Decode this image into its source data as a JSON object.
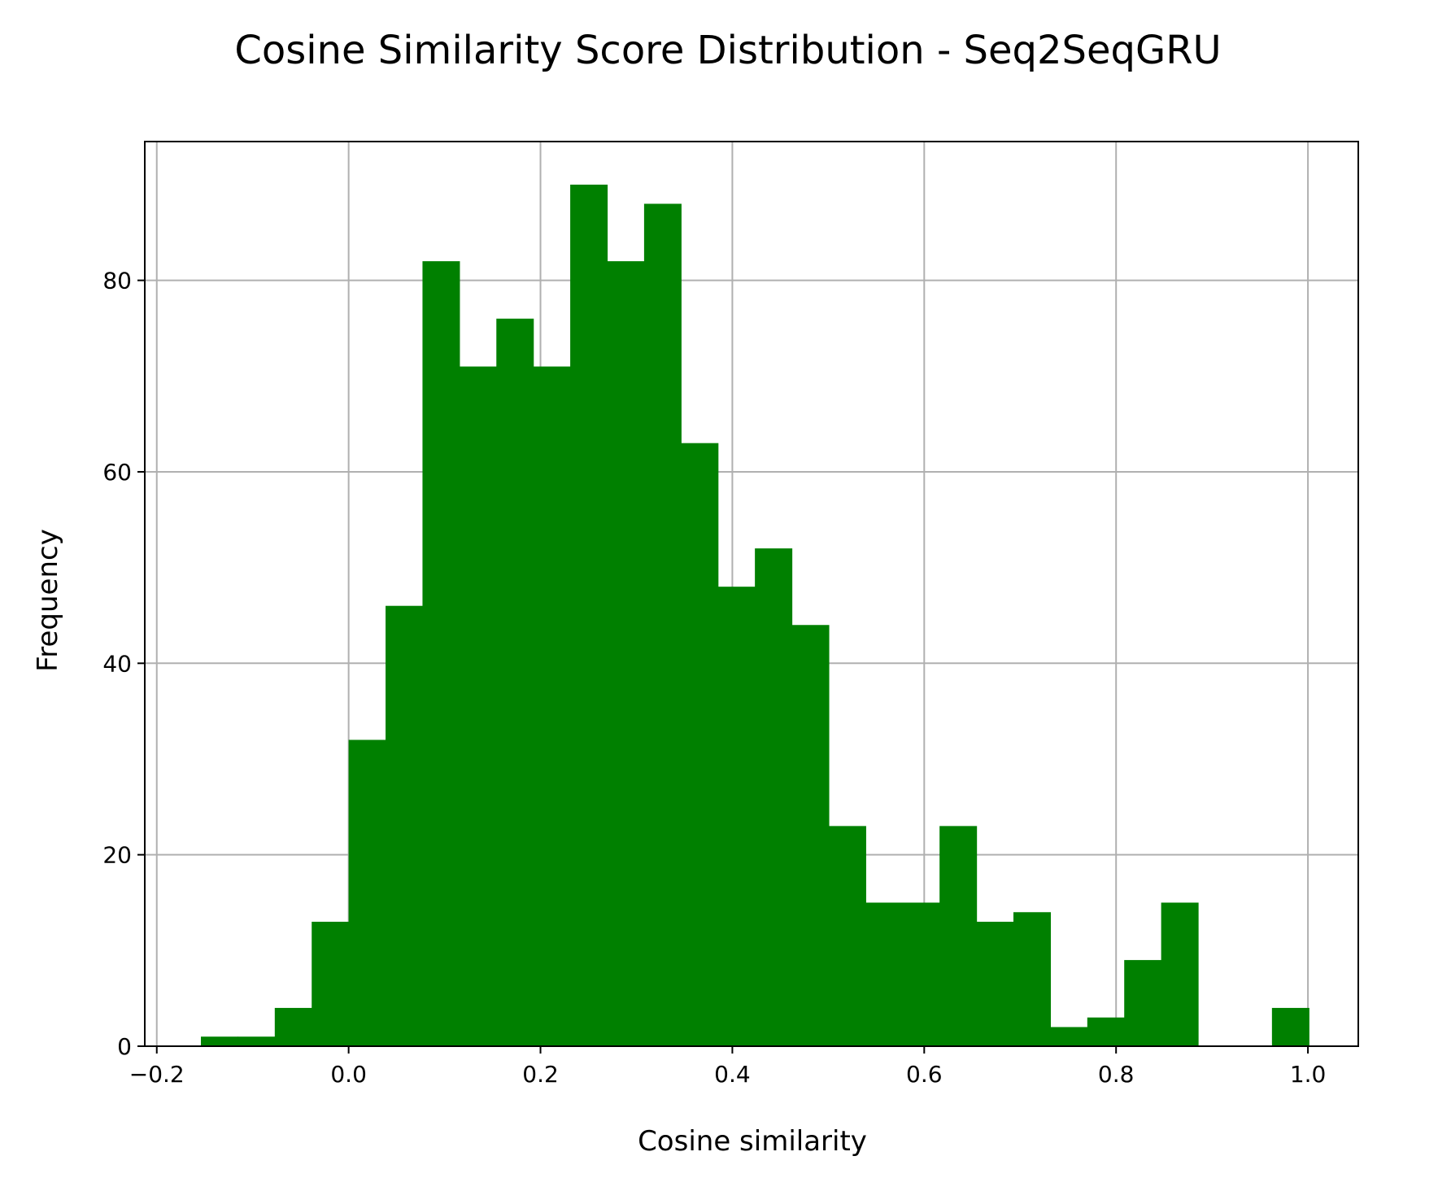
{
  "chart_data": {
    "type": "bar",
    "title": "Cosine Similarity Score Distribution - Seq2SeqGRU",
    "xlabel": "Cosine similarity",
    "ylabel": "Frequency",
    "xlim": [
      -0.2125,
      1.0525
    ],
    "ylim": [
      0,
      94.5
    ],
    "x_ticks": [
      -0.2,
      0.0,
      0.2,
      0.4,
      0.6,
      0.8,
      1.0
    ],
    "x_tick_labels": [
      "−0.2",
      "0.0",
      "0.2",
      "0.4",
      "0.6",
      "0.8",
      "1.0"
    ],
    "y_ticks": [
      0,
      20,
      40,
      60,
      80
    ],
    "y_tick_labels": [
      "0",
      "20",
      "40",
      "60",
      "80"
    ],
    "grid": true,
    "bin_width": 0.0385,
    "bin_edges_start": -0.154,
    "bins": [
      {
        "x0": -0.154,
        "x1": -0.1155,
        "count": 1
      },
      {
        "x0": -0.1155,
        "x1": -0.077,
        "count": 1
      },
      {
        "x0": -0.077,
        "x1": -0.0385,
        "count": 4
      },
      {
        "x0": -0.0385,
        "x1": 0.0,
        "count": 13
      },
      {
        "x0": 0.0,
        "x1": 0.0385,
        "count": 32
      },
      {
        "x0": 0.0385,
        "x1": 0.077,
        "count": 46
      },
      {
        "x0": 0.077,
        "x1": 0.1155,
        "count": 82
      },
      {
        "x0": 0.1155,
        "x1": 0.154,
        "count": 71
      },
      {
        "x0": 0.154,
        "x1": 0.1925,
        "count": 76
      },
      {
        "x0": 0.1925,
        "x1": 0.231,
        "count": 71
      },
      {
        "x0": 0.231,
        "x1": 0.2695,
        "count": 90
      },
      {
        "x0": 0.2695,
        "x1": 0.308,
        "count": 82
      },
      {
        "x0": 0.308,
        "x1": 0.3465,
        "count": 88
      },
      {
        "x0": 0.3465,
        "x1": 0.385,
        "count": 63
      },
      {
        "x0": 0.385,
        "x1": 0.4235,
        "count": 48
      },
      {
        "x0": 0.4235,
        "x1": 0.462,
        "count": 52
      },
      {
        "x0": 0.462,
        "x1": 0.5005,
        "count": 44
      },
      {
        "x0": 0.5005,
        "x1": 0.539,
        "count": 23
      },
      {
        "x0": 0.539,
        "x1": 0.5775,
        "count": 15
      },
      {
        "x0": 0.5775,
        "x1": 0.616,
        "count": 15
      },
      {
        "x0": 0.616,
        "x1": 0.6545,
        "count": 23
      },
      {
        "x0": 0.6545,
        "x1": 0.693,
        "count": 13
      },
      {
        "x0": 0.693,
        "x1": 0.7315,
        "count": 14
      },
      {
        "x0": 0.7315,
        "x1": 0.77,
        "count": 2
      },
      {
        "x0": 0.77,
        "x1": 0.8085,
        "count": 3
      },
      {
        "x0": 0.8085,
        "x1": 0.847,
        "count": 9
      },
      {
        "x0": 0.847,
        "x1": 0.8855,
        "count": 15
      },
      {
        "x0": 0.8855,
        "x1": 0.924,
        "count": 0
      },
      {
        "x0": 0.924,
        "x1": 0.9625,
        "count": 0
      },
      {
        "x0": 0.9625,
        "x1": 1.001,
        "count": 4
      }
    ],
    "colors": {
      "bar": "#008000",
      "grid": "#b0b0b0",
      "axes": "#000000"
    }
  }
}
